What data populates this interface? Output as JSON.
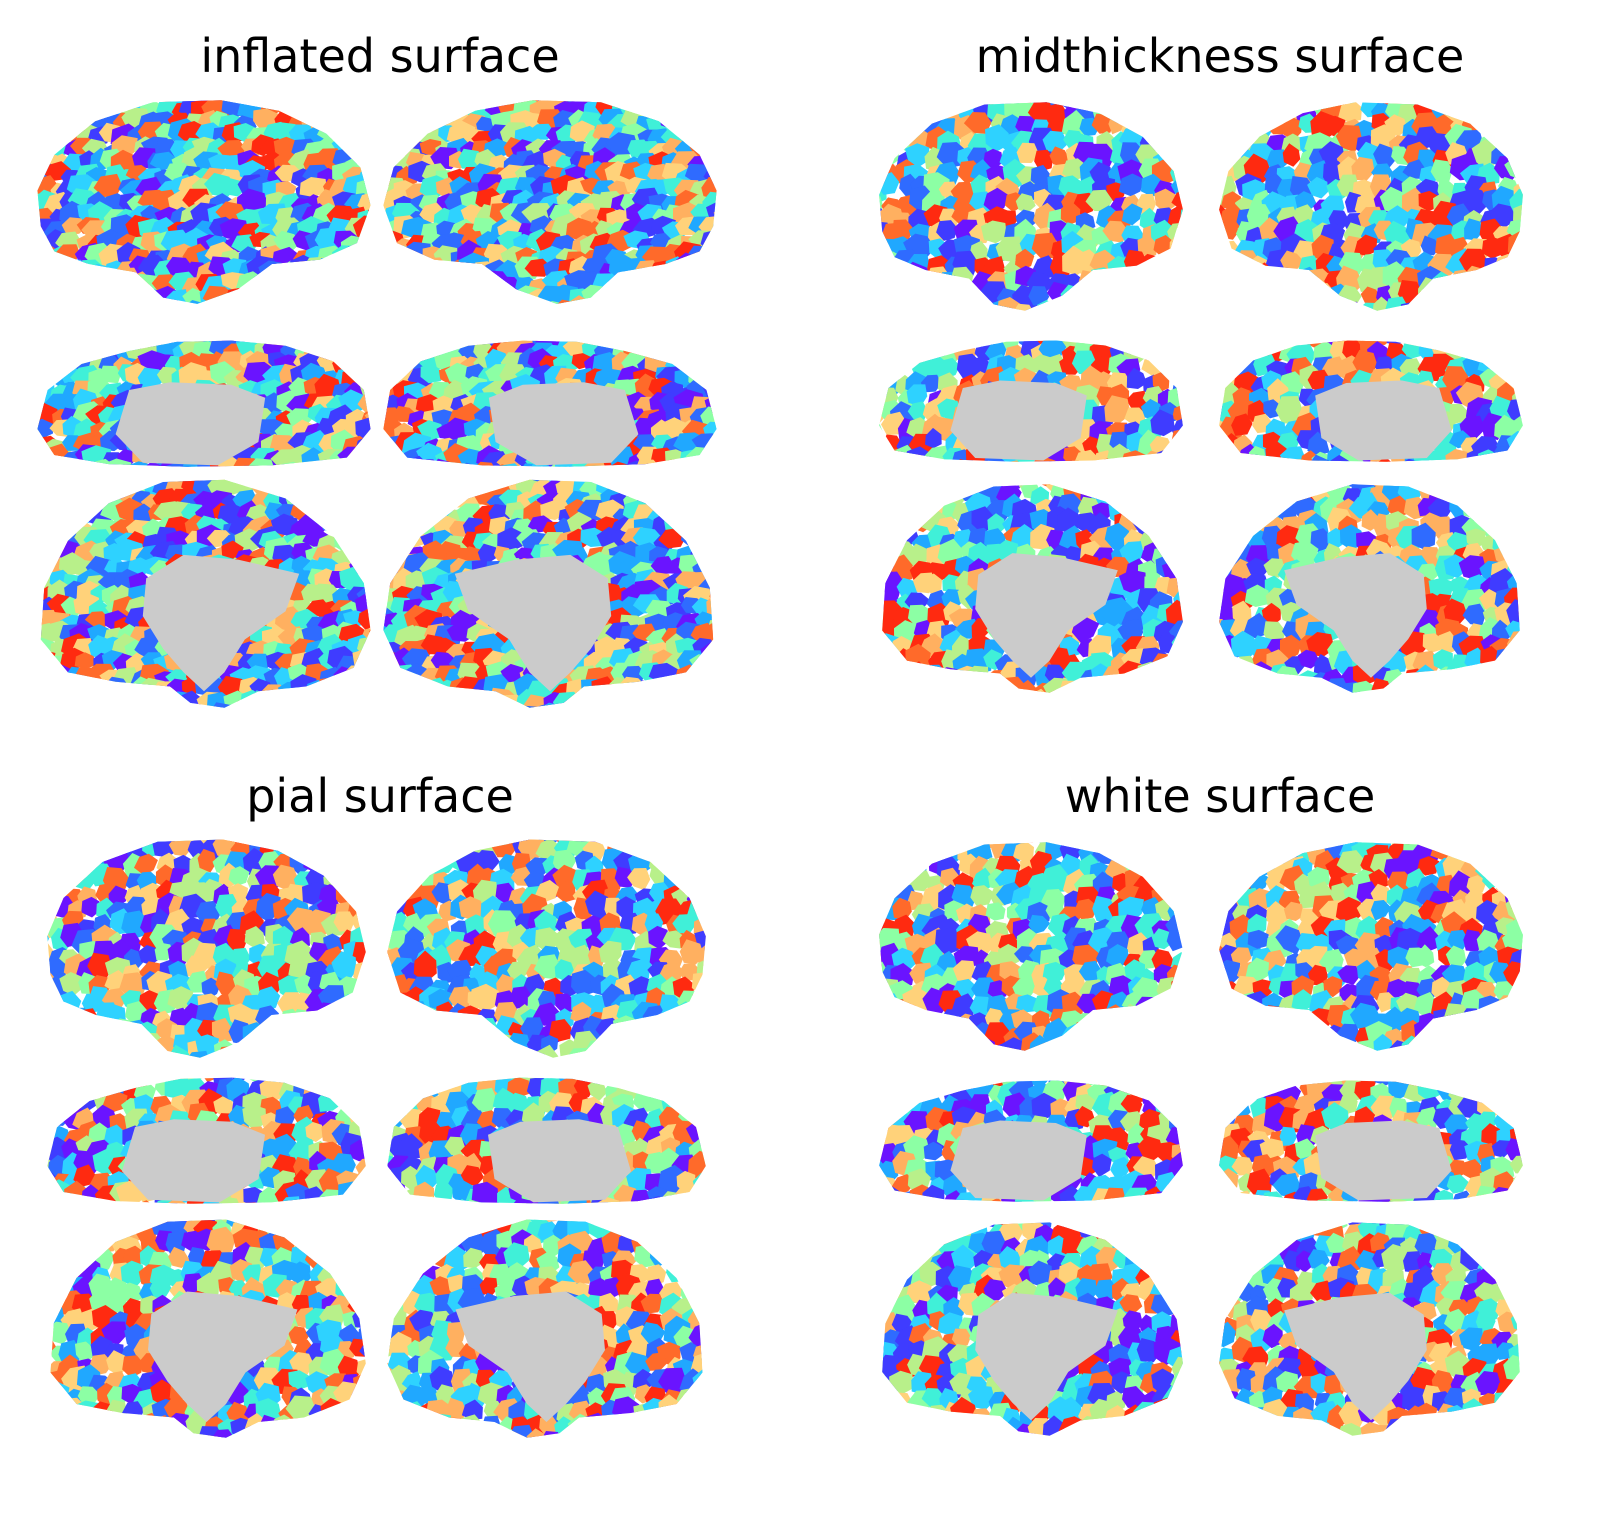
{
  "figure": {
    "panels": [
      {
        "key": "inflated",
        "title": "inflated surface",
        "style": "inflated"
      },
      {
        "key": "midthickness",
        "title": "midthickness surface",
        "style": "folded"
      },
      {
        "key": "pial",
        "title": "pial surface",
        "style": "folded"
      },
      {
        "key": "white",
        "title": "white surface",
        "style": "folded"
      }
    ],
    "views": [
      "lateral-left",
      "lateral-right",
      "ventral-left",
      "ventral-right",
      "medial-left",
      "medial-right"
    ],
    "colors": {
      "parcel_palette": [
        "#ff2a10",
        "#ff6a2a",
        "#ffb060",
        "#ffd27a",
        "#8cffa4",
        "#b8f08a",
        "#40f0d8",
        "#2ed2ff",
        "#20a8ff",
        "#2f6bff",
        "#3f3cff",
        "#6a14ff"
      ],
      "medial_wall": "#cbcbcb",
      "background": "#ffffff"
    }
  }
}
